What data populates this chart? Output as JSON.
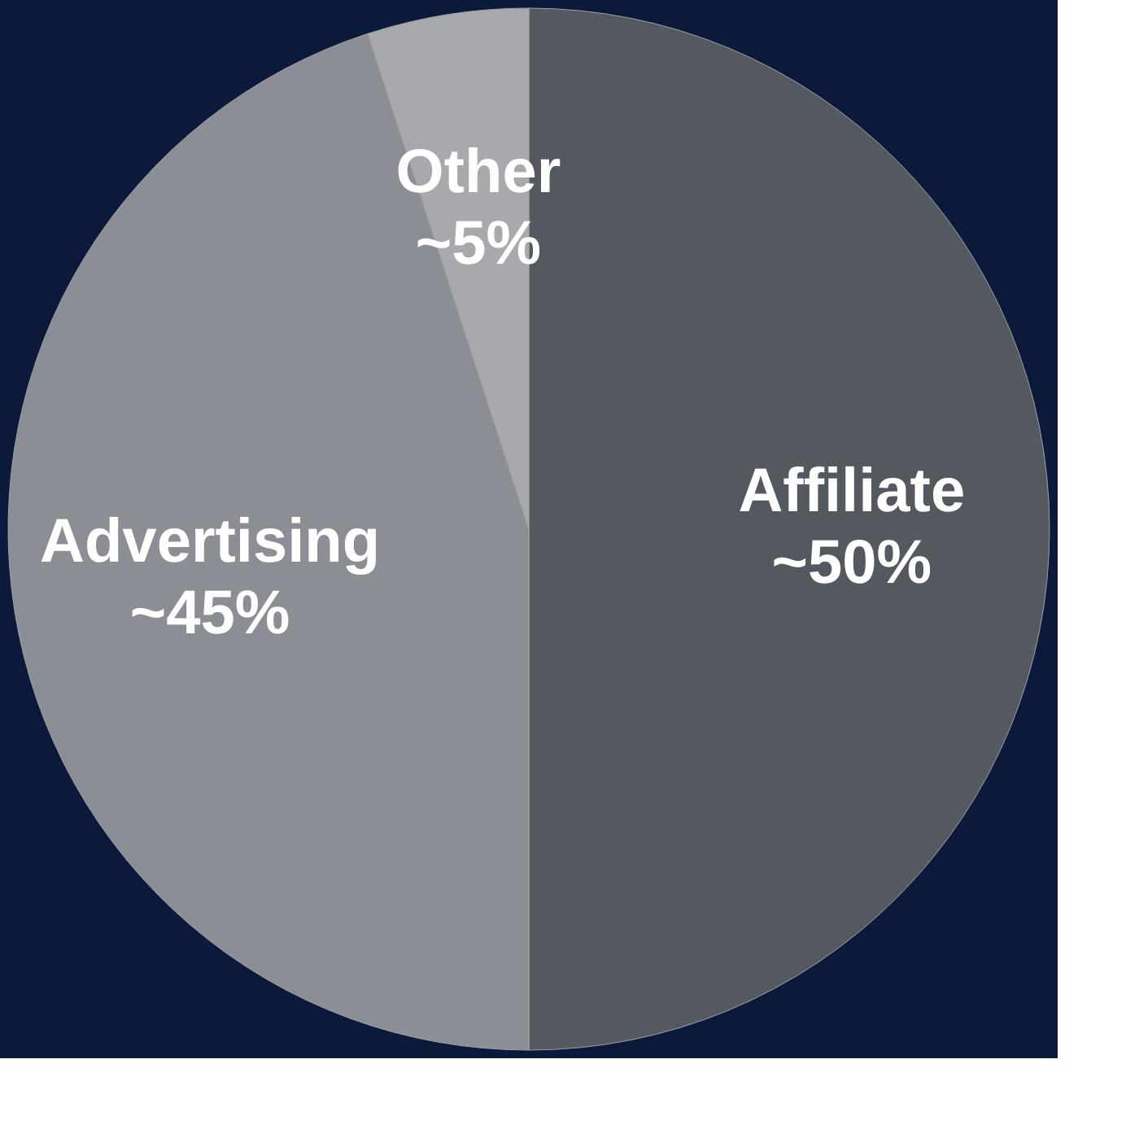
{
  "chart_data": {
    "type": "pie",
    "categories": [
      "Affiliate",
      "Advertising",
      "Other"
    ],
    "values": [
      50,
      45,
      5
    ],
    "colors": [
      "#54585f",
      "#8b8e95",
      "#a7a9ad"
    ],
    "value_labels": [
      "~50%",
      "~45%",
      "~5%"
    ],
    "legend": false
  }
}
